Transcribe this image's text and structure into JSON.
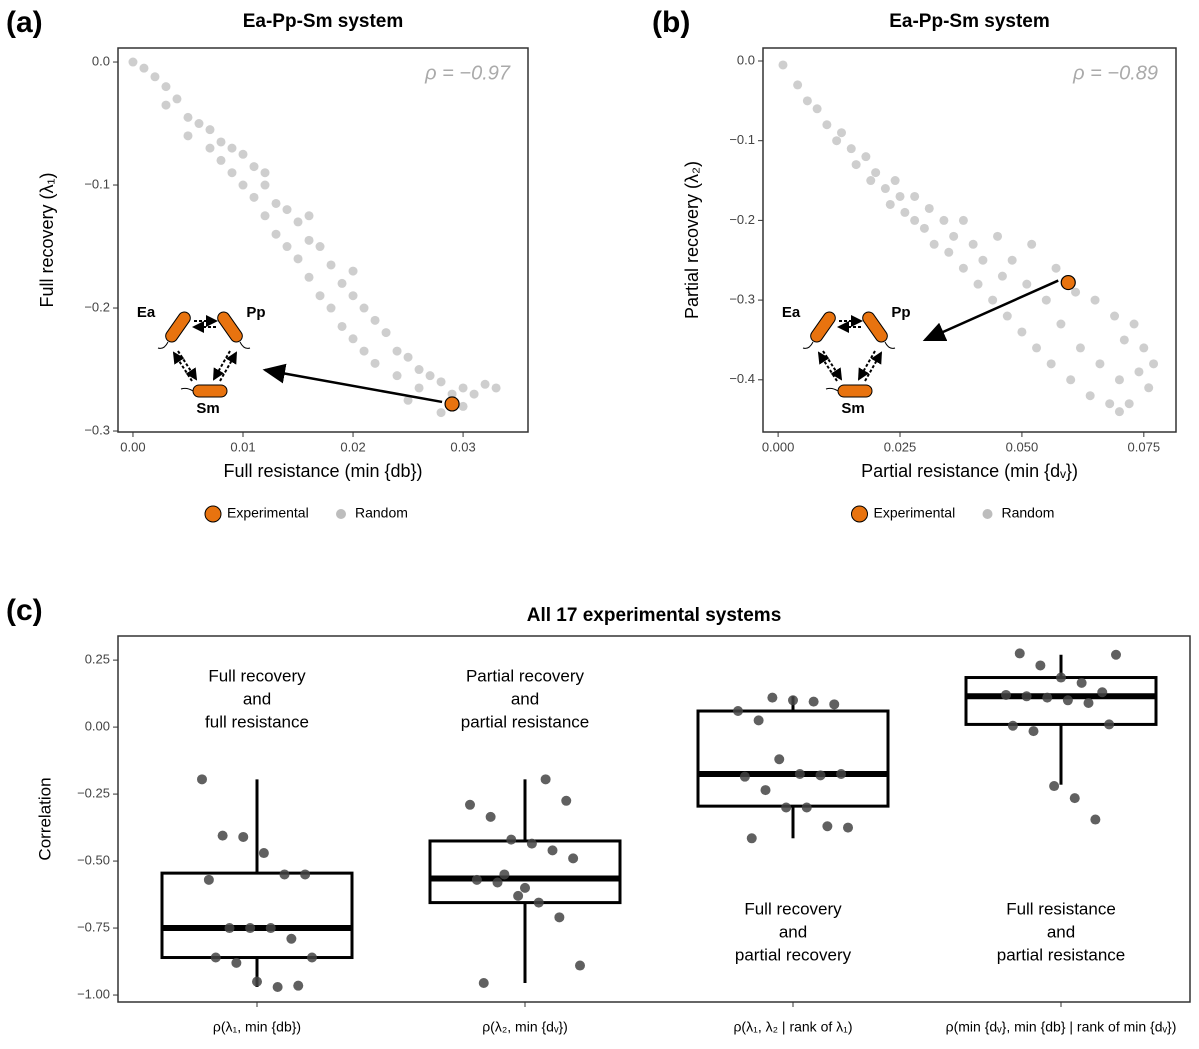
{
  "chart_data": [
    {
      "type": "scatter",
      "panel_label": "(a)",
      "title": "Ea-Pp-Sm system",
      "x_label": "Full resistance (min {db})",
      "y_label": "Full recovery (λ₁)",
      "annotation": "ρ = −0.97",
      "inset_labels": [
        "Ea",
        "Pp",
        "Sm"
      ],
      "xlim": [
        -0.00136,
        0.0359
      ],
      "ylim": [
        -0.3008,
        0.0114
      ],
      "xticks": [
        {
          "value": 0,
          "label": "0.00"
        },
        0.01,
        0.02,
        0.03
      ],
      "yticks": [
        {
          "value": 0,
          "label": "0.0"
        },
        {
          "value": -0.1,
          "label": "−0.1"
        },
        {
          "value": -0.2,
          "label": "−0.2"
        },
        {
          "value": -0.3,
          "label": "−0.3"
        }
      ],
      "series": [
        {
          "name": "Random",
          "color": "#bdbdbd",
          "x": [
            0.0,
            0.001,
            0.002,
            0.003,
            0.003,
            0.004,
            0.005,
            0.005,
            0.006,
            0.007,
            0.007,
            0.008,
            0.008,
            0.009,
            0.009,
            0.01,
            0.01,
            0.011,
            0.011,
            0.012,
            0.012,
            0.013,
            0.013,
            0.014,
            0.014,
            0.015,
            0.015,
            0.016,
            0.016,
            0.017,
            0.017,
            0.018,
            0.018,
            0.019,
            0.019,
            0.02,
            0.02,
            0.021,
            0.021,
            0.022,
            0.022,
            0.023,
            0.024,
            0.024,
            0.025,
            0.026,
            0.026,
            0.027,
            0.028,
            0.029,
            0.03,
            0.031,
            0.032,
            0.033,
            0.03,
            0.028,
            0.025,
            0.012,
            0.02,
            0.016
          ],
          "values": [
            0.0,
            -0.005,
            -0.012,
            -0.02,
            -0.035,
            -0.03,
            -0.045,
            -0.06,
            -0.05,
            -0.07,
            -0.055,
            -0.08,
            -0.065,
            -0.09,
            -0.07,
            -0.1,
            -0.075,
            -0.085,
            -0.11,
            -0.1,
            -0.125,
            -0.115,
            -0.14,
            -0.12,
            -0.15,
            -0.13,
            -0.16,
            -0.145,
            -0.175,
            -0.15,
            -0.19,
            -0.165,
            -0.2,
            -0.18,
            -0.215,
            -0.19,
            -0.225,
            -0.2,
            -0.235,
            -0.21,
            -0.245,
            -0.22,
            -0.235,
            -0.255,
            -0.24,
            -0.25,
            -0.265,
            -0.255,
            -0.26,
            -0.27,
            -0.265,
            -0.27,
            -0.262,
            -0.265,
            -0.28,
            -0.285,
            -0.275,
            -0.09,
            -0.17,
            -0.125
          ]
        },
        {
          "name": "Experimental",
          "color": "#e8730f",
          "x": [
            0.029
          ],
          "values": [
            -0.278
          ]
        }
      ]
    },
    {
      "type": "scatter",
      "panel_label": "(b)",
      "title": "Ea-Pp-Sm system",
      "x_label": "Partial resistance (min {dᵥ})",
      "y_label": "Partial recovery (λ₂)",
      "annotation": "ρ = −0.89",
      "inset_labels": [
        "Ea",
        "Pp",
        "Sm"
      ],
      "xlim": [
        -0.0031,
        0.0816
      ],
      "ylim": [
        -0.4655,
        0.0163
      ],
      "xticks": [
        {
          "value": 0,
          "label": "0.000"
        },
        0.025,
        {
          "value": 0.05,
          "label": "0.050"
        },
        0.075
      ],
      "yticks": [
        {
          "value": 0,
          "label": "0.0"
        },
        {
          "value": -0.1,
          "label": "−0.1"
        },
        {
          "value": -0.2,
          "label": "−0.2"
        },
        {
          "value": -0.3,
          "label": "−0.3"
        },
        {
          "value": -0.4,
          "label": "−0.4"
        }
      ],
      "series": [
        {
          "name": "Random",
          "color": "#bdbdbd",
          "x": [
            0.001,
            0.004,
            0.006,
            0.008,
            0.01,
            0.012,
            0.013,
            0.015,
            0.016,
            0.018,
            0.019,
            0.02,
            0.022,
            0.023,
            0.024,
            0.025,
            0.026,
            0.028,
            0.028,
            0.03,
            0.031,
            0.032,
            0.034,
            0.035,
            0.036,
            0.038,
            0.038,
            0.04,
            0.041,
            0.042,
            0.044,
            0.045,
            0.046,
            0.047,
            0.048,
            0.05,
            0.051,
            0.052,
            0.053,
            0.055,
            0.056,
            0.057,
            0.058,
            0.06,
            0.061,
            0.062,
            0.064,
            0.065,
            0.066,
            0.068,
            0.069,
            0.07,
            0.071,
            0.072,
            0.073,
            0.074,
            0.075,
            0.076,
            0.077,
            0.07
          ],
          "values": [
            -0.005,
            -0.03,
            -0.05,
            -0.06,
            -0.08,
            -0.1,
            -0.09,
            -0.11,
            -0.13,
            -0.12,
            -0.15,
            -0.14,
            -0.16,
            -0.18,
            -0.15,
            -0.17,
            -0.19,
            -0.2,
            -0.17,
            -0.21,
            -0.185,
            -0.23,
            -0.2,
            -0.24,
            -0.22,
            -0.26,
            -0.2,
            -0.23,
            -0.28,
            -0.25,
            -0.3,
            -0.22,
            -0.27,
            -0.32,
            -0.25,
            -0.34,
            -0.28,
            -0.23,
            -0.36,
            -0.3,
            -0.38,
            -0.26,
            -0.33,
            -0.4,
            -0.29,
            -0.36,
            -0.42,
            -0.3,
            -0.38,
            -0.43,
            -0.32,
            -0.4,
            -0.35,
            -0.43,
            -0.33,
            -0.39,
            -0.36,
            -0.41,
            -0.38,
            -0.44
          ]
        },
        {
          "name": "Experimental",
          "color": "#e8730f",
          "x": [
            0.0595
          ],
          "values": [
            -0.278
          ]
        }
      ]
    },
    {
      "type": "box",
      "panel_label": "(c)",
      "title": "All 17 experimental systems",
      "y_label": "Correlation",
      "categories": [
        "ρ(λ₁, min {db})",
        "ρ(λ₂, min {dᵥ})",
        "ρ(λ₁, λ₂ | rank of λ₁)",
        "ρ(min {dᵥ}, min {db} | rank of min {dᵥ})"
      ],
      "annotations": [
        [
          "Full recovery",
          "and",
          "full resistance"
        ],
        [
          "Partial recovery",
          "and",
          "partial resistance"
        ],
        [
          "Full recovery",
          "and",
          "partial recovery"
        ],
        [
          "Full resistance",
          "and",
          "partial resistance"
        ]
      ],
      "ylim": [
        -1.026,
        0.34
      ],
      "yticks": [
        0.25,
        {
          "value": 0,
          "label": "0.00"
        },
        {
          "value": -0.25,
          "label": "−0.25"
        },
        {
          "value": -0.5,
          "label": "−0.50"
        },
        {
          "value": -0.75,
          "label": "−0.75"
        },
        {
          "value": -1,
          "label": "−1.00"
        }
      ],
      "boxes": [
        {
          "whislo": -0.97,
          "q1": -0.86,
          "med": -0.75,
          "q3": -0.545,
          "whishi": -0.195
        },
        {
          "whislo": -0.955,
          "q1": -0.655,
          "med": -0.565,
          "q3": -0.425,
          "whishi": -0.195
        },
        {
          "whislo": -0.415,
          "q1": -0.295,
          "med": -0.175,
          "q3": 0.06,
          "whishi": 0.115
        },
        {
          "whislo": -0.215,
          "q1": 0.01,
          "med": 0.115,
          "q3": 0.185,
          "whishi": 0.27
        }
      ],
      "points": [
        [
          -0.195,
          -0.405,
          -0.41,
          -0.47,
          -0.55,
          -0.55,
          -0.57,
          -0.75,
          -0.75,
          -0.75,
          -0.79,
          -0.86,
          -0.86,
          -0.88,
          -0.95,
          -0.97,
          -0.965
        ],
        [
          -0.195,
          -0.275,
          -0.29,
          -0.335,
          -0.42,
          -0.435,
          -0.46,
          -0.49,
          -0.57,
          -0.58,
          -0.63,
          -0.655,
          -0.71,
          -0.89,
          -0.955,
          -0.55,
          -0.6
        ],
        [
          0.11,
          0.1,
          0.095,
          0.085,
          0.06,
          0.025,
          -0.12,
          -0.175,
          -0.18,
          -0.175,
          -0.185,
          -0.235,
          -0.3,
          -0.3,
          -0.37,
          -0.375,
          -0.415
        ],
        [
          0.27,
          0.275,
          0.23,
          0.185,
          0.165,
          0.13,
          0.12,
          0.115,
          0.11,
          0.1,
          0.09,
          0.01,
          0.005,
          -0.015,
          -0.22,
          -0.265,
          -0.345
        ]
      ]
    }
  ]
}
